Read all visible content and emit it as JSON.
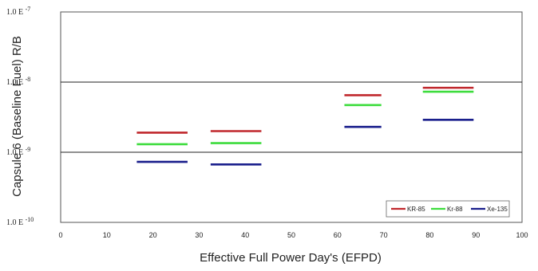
{
  "chart_data": {
    "type": "line",
    "xlabel": "Effective Full Power Day's (EFPD)",
    "ylabel": "Capsule 6 (Baseline Fuel) R/B",
    "xlim": [
      0,
      100
    ],
    "ylim": [
      1e-10,
      1e-07
    ],
    "yscale": "log",
    "xticks": [
      0,
      10,
      20,
      30,
      40,
      50,
      60,
      70,
      80,
      90,
      100
    ],
    "yticks": [
      {
        "value": 1e-07,
        "base": "1.0 E",
        "exp": "-7"
      },
      {
        "value": 1e-08,
        "base": "1.0 E",
        "exp": "-8"
      },
      {
        "value": 1e-09,
        "base": "1.0 E",
        "exp": "-9"
      },
      {
        "value": 1e-10,
        "base": "1.0 E",
        "exp": "-10"
      }
    ],
    "grid": "horizontal",
    "legend_position": "bottom-right",
    "series": [
      {
        "name": "KR-85",
        "color": "#c0282d",
        "segments": [
          {
            "x": [
              16.5,
              27.5
            ],
            "y": 1.9e-09
          },
          {
            "x": [
              32.5,
              43.5
            ],
            "y": 2e-09
          },
          {
            "x": [
              61.5,
              69.5
            ],
            "y": 6.5e-09
          },
          {
            "x": [
              78.5,
              89.5
            ],
            "y": 8.3e-09
          }
        ]
      },
      {
        "name": "Kr-88",
        "color": "#3ddc3d",
        "segments": [
          {
            "x": [
              16.5,
              27.5
            ],
            "y": 1.3e-09
          },
          {
            "x": [
              32.5,
              43.5
            ],
            "y": 1.35e-09
          },
          {
            "x": [
              61.5,
              69.5
            ],
            "y": 4.7e-09
          },
          {
            "x": [
              78.5,
              89.5
            ],
            "y": 7.3e-09
          }
        ]
      },
      {
        "name": "Xe-135",
        "color": "#1a1f8c",
        "segments": [
          {
            "x": [
              16.5,
              27.5
            ],
            "y": 7.3e-10
          },
          {
            "x": [
              32.5,
              43.5
            ],
            "y": 6.7e-10
          },
          {
            "x": [
              61.5,
              69.5
            ],
            "y": 2.3e-09
          },
          {
            "x": [
              78.5,
              89.5
            ],
            "y": 2.9e-09
          }
        ]
      }
    ]
  }
}
